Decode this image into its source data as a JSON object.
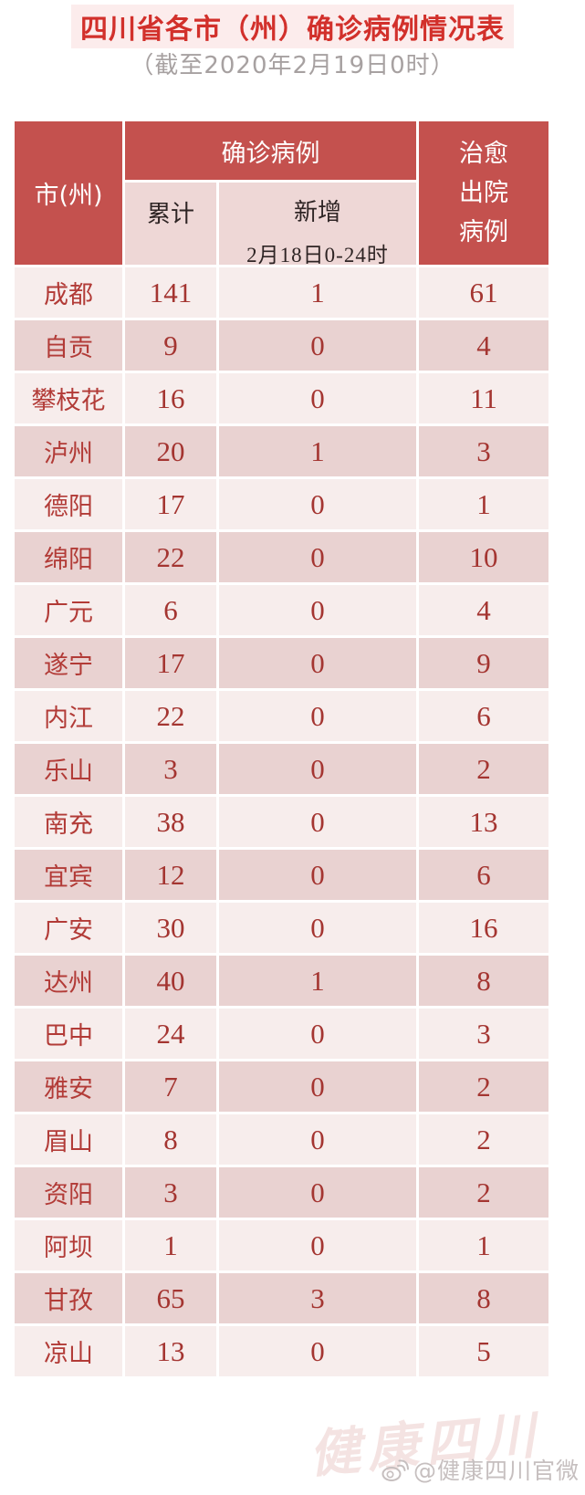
{
  "title": "四川省各市（州）确诊病例情况表",
  "subtitle": "（截至2020年2月19日0时）",
  "header": {
    "city_col": "市(州)",
    "confirmed_group": "确诊病例",
    "cumulative": "累计",
    "new_label": "新增",
    "new_period": "2月18日0-24时",
    "cured_lines": [
      "治愈",
      "出院",
      "病例"
    ]
  },
  "chart_data": {
    "type": "table",
    "title": "四川省各市（州）确诊病例情况表",
    "subtitle": "（截至2020年2月19日0时）",
    "columns": [
      "市(州)",
      "确诊病例-累计",
      "确诊病例-新增 2月18日0-24时",
      "治愈出院病例"
    ],
    "rows": [
      [
        "成都",
        141,
        1,
        61
      ],
      [
        "自贡",
        9,
        0,
        4
      ],
      [
        "攀枝花",
        16,
        0,
        11
      ],
      [
        "泸州",
        20,
        1,
        3
      ],
      [
        "德阳",
        17,
        0,
        1
      ],
      [
        "绵阳",
        22,
        0,
        10
      ],
      [
        "广元",
        6,
        0,
        4
      ],
      [
        "遂宁",
        17,
        0,
        9
      ],
      [
        "内江",
        22,
        0,
        6
      ],
      [
        "乐山",
        3,
        0,
        2
      ],
      [
        "南充",
        38,
        0,
        13
      ],
      [
        "宜宾",
        12,
        0,
        6
      ],
      [
        "广安",
        30,
        0,
        16
      ],
      [
        "达州",
        40,
        1,
        8
      ],
      [
        "巴中",
        24,
        0,
        3
      ],
      [
        "雅安",
        7,
        0,
        2
      ],
      [
        "眉山",
        8,
        0,
        2
      ],
      [
        "资阳",
        3,
        0,
        2
      ],
      [
        "阿坝",
        1,
        0,
        1
      ],
      [
        "甘孜",
        65,
        3,
        8
      ],
      [
        "凉山",
        13,
        0,
        5
      ]
    ]
  },
  "watermark": {
    "handle": "@健康四川官微",
    "icon": "weibo-icon",
    "faint_text": "健康四川"
  },
  "colors": {
    "header_red": "#c4514e",
    "subheader_pink": "#eed7d6",
    "row_light": "#f7edec",
    "row_dark": "#e9d2d1",
    "number_red": "#a43531",
    "city_red": "#b23b37",
    "title_red": "#d2302b",
    "title_band": "#fcecec",
    "subheader_text": "#2e2424",
    "subtitle_gray": "#a7a1a1",
    "watermark_gray": "#c6bfbf",
    "faint_watermark_pink": "#f0d8d6"
  }
}
